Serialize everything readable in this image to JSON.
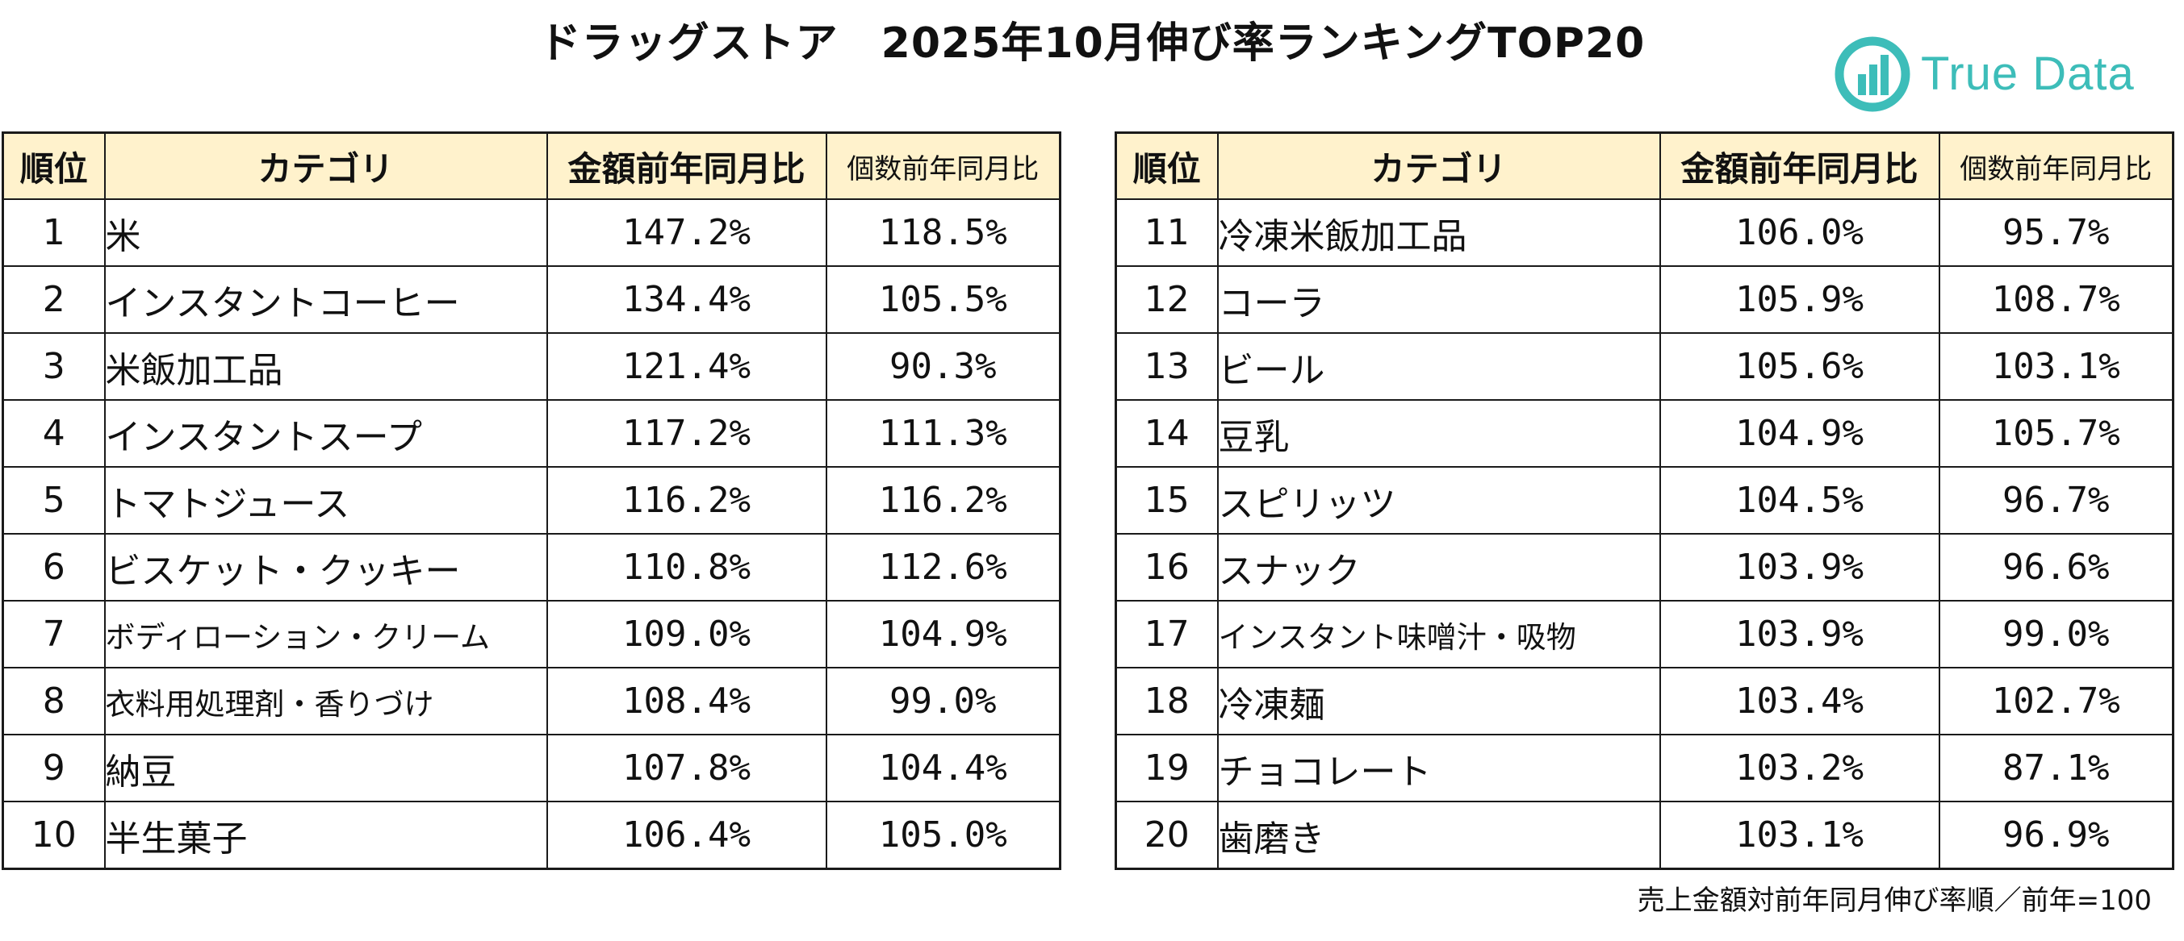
{
  "header": {
    "title": "ドラッグストア　2025年10月伸び率ランキングTOP20",
    "brand": "True Data",
    "brand_color": "#3dbdb9"
  },
  "table": {
    "columns": [
      "順位",
      "カテゴリ",
      "金額前年同月比",
      "個数前年同月比"
    ],
    "left_rows": [
      {
        "rank": "1",
        "category": "米",
        "amount_ratio": "147.2%",
        "count_ratio": "118.5%"
      },
      {
        "rank": "2",
        "category": "インスタントコーヒー",
        "amount_ratio": "134.4%",
        "count_ratio": "105.5%"
      },
      {
        "rank": "3",
        "category": "米飯加工品",
        "amount_ratio": "121.4%",
        "count_ratio": "90.3%"
      },
      {
        "rank": "4",
        "category": "インスタントスープ",
        "amount_ratio": "117.2%",
        "count_ratio": "111.3%"
      },
      {
        "rank": "5",
        "category": "トマトジュース",
        "amount_ratio": "116.2%",
        "count_ratio": "116.2%"
      },
      {
        "rank": "6",
        "category": "ビスケット・クッキー",
        "amount_ratio": "110.8%",
        "count_ratio": "112.6%"
      },
      {
        "rank": "7",
        "category": "ボディローション・クリーム",
        "amount_ratio": "109.0%",
        "count_ratio": "104.9%"
      },
      {
        "rank": "8",
        "category": "衣料用処理剤・香りづけ",
        "amount_ratio": "108.4%",
        "count_ratio": "99.0%"
      },
      {
        "rank": "9",
        "category": "納豆",
        "amount_ratio": "107.8%",
        "count_ratio": "104.4%"
      },
      {
        "rank": "10",
        "category": "半生菓子",
        "amount_ratio": "106.4%",
        "count_ratio": "105.0%"
      }
    ],
    "right_rows": [
      {
        "rank": "11",
        "category": "冷凍米飯加工品",
        "amount_ratio": "106.0%",
        "count_ratio": "95.7%"
      },
      {
        "rank": "12",
        "category": "コーラ",
        "amount_ratio": "105.9%",
        "count_ratio": "108.7%"
      },
      {
        "rank": "13",
        "category": "ビール",
        "amount_ratio": "105.6%",
        "count_ratio": "103.1%"
      },
      {
        "rank": "14",
        "category": "豆乳",
        "amount_ratio": "104.9%",
        "count_ratio": "105.7%"
      },
      {
        "rank": "15",
        "category": "スピリッツ",
        "amount_ratio": "104.5%",
        "count_ratio": "96.7%"
      },
      {
        "rank": "16",
        "category": "スナック",
        "amount_ratio": "103.9%",
        "count_ratio": "96.6%"
      },
      {
        "rank": "17",
        "category": "インスタント味噌汁・吸物",
        "amount_ratio": "103.9%",
        "count_ratio": "99.0%"
      },
      {
        "rank": "18",
        "category": "冷凍麺",
        "amount_ratio": "103.4%",
        "count_ratio": "102.7%"
      },
      {
        "rank": "19",
        "category": "チョコレート",
        "amount_ratio": "103.2%",
        "count_ratio": "87.1%"
      },
      {
        "rank": "20",
        "category": "歯磨き",
        "amount_ratio": "103.1%",
        "count_ratio": "96.9%"
      }
    ]
  },
  "footnote": "売上金額対前年同月伸び率順／前年=100"
}
